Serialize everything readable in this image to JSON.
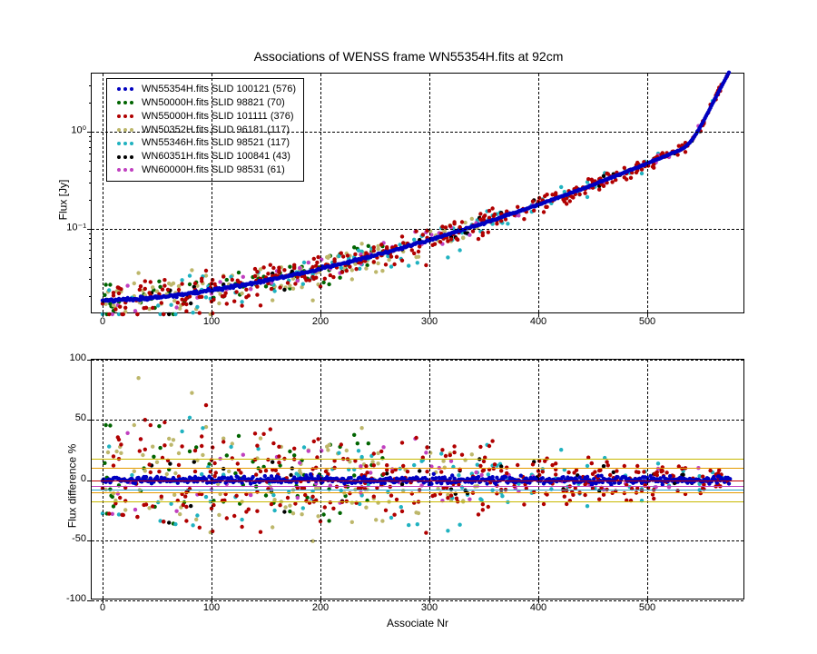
{
  "title": "Associations of WENSS frame WN55354H.fits at 92cm",
  "xlabel": "Associate Nr",
  "top": {
    "ylabel": "Flux [Jy]",
    "yscale": "log",
    "xlim": [
      -10,
      590
    ],
    "ylim": [
      0.013,
      4.0
    ],
    "ytick_vals": [
      0.1,
      1.0
    ],
    "ytick_labels": [
      "10⁻¹",
      "10⁰"
    ],
    "grid": true
  },
  "bottom": {
    "ylabel": "Flux difference %",
    "yscale": "linear",
    "xlim": [
      -10,
      590
    ],
    "ylim": [
      -100,
      100
    ],
    "ytick_vals": [
      -100,
      -50,
      0,
      50,
      100
    ],
    "ytick_labels": [
      "-100",
      "-50",
      "0",
      "50",
      "100"
    ],
    "grid": true,
    "hlines": [
      {
        "y": 0,
        "color": "#c00000"
      },
      {
        "y": 10,
        "color": "#e59a00"
      },
      {
        "y": -10,
        "color": "#e59a00"
      },
      {
        "y": 18,
        "color": "#c8b800"
      },
      {
        "y": -18,
        "color": "#c8b800"
      },
      {
        "y": -5,
        "color": "#c040c0"
      },
      {
        "y": -8,
        "color": "#2aa0c8"
      }
    ]
  },
  "xtick_vals": [
    0,
    100,
    200,
    300,
    400,
    500
  ],
  "xtick_labels": [
    "0",
    "100",
    "200",
    "300",
    "400",
    "500"
  ],
  "series": [
    {
      "label": "WN55354H.fits SLID 100121 (576)",
      "color": "#0000c0",
      "key": "s0"
    },
    {
      "label": "WN50000H.fits SLID 98821 (70)",
      "color": "#006400",
      "key": "s1"
    },
    {
      "label": "WN55000H.fits SLID 101111 (376)",
      "color": "#b00000",
      "key": "s2"
    },
    {
      "label": "WN50352H.fits SLID 96181 (117)",
      "color": "#bdb76b",
      "key": "s3"
    },
    {
      "label": "WN55346H.fits SLID 98521 (117)",
      "color": "#20b2c0",
      "key": "s4"
    },
    {
      "label": "WN60351H.fits SLID 100841 (43)",
      "color": "#000000",
      "key": "s5"
    },
    {
      "label": "WN60000H.fits SLID 98531 (61)",
      "color": "#c040c0",
      "key": "s6"
    }
  ],
  "marker_size": 2.2,
  "fontsize_title": 14,
  "fontsize_label": 12,
  "fontsize_tick": 11,
  "bg": "#ffffff"
}
